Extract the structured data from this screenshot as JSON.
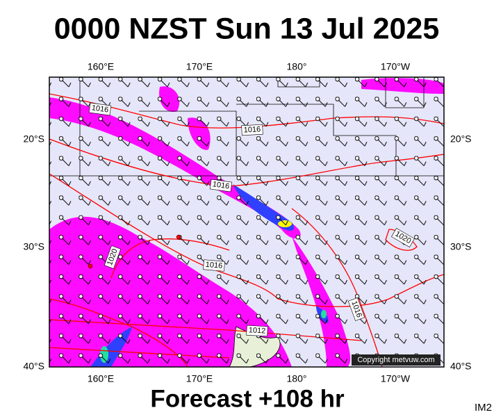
{
  "header": {
    "title": "0000 NZST Sun 13 Jul 2025"
  },
  "axes": {
    "top": [
      "160°E",
      "170°E",
      "180°",
      "170°W"
    ],
    "bottom": [
      "160°E",
      "170°E",
      "180°",
      "170°W"
    ],
    "left": [
      "20°S",
      "30°S",
      "40°S"
    ],
    "right": [
      "20°S",
      "30°S",
      "40°S"
    ]
  },
  "isobar_labels": [
    "1016",
    "1016",
    "1016",
    "1016",
    "1020",
    "1020",
    "1012",
    "1016"
  ],
  "copyright": "Copyright metvuw.com",
  "footer": {
    "forecast": "Forecast +108 hr",
    "code": "IM2"
  }
}
